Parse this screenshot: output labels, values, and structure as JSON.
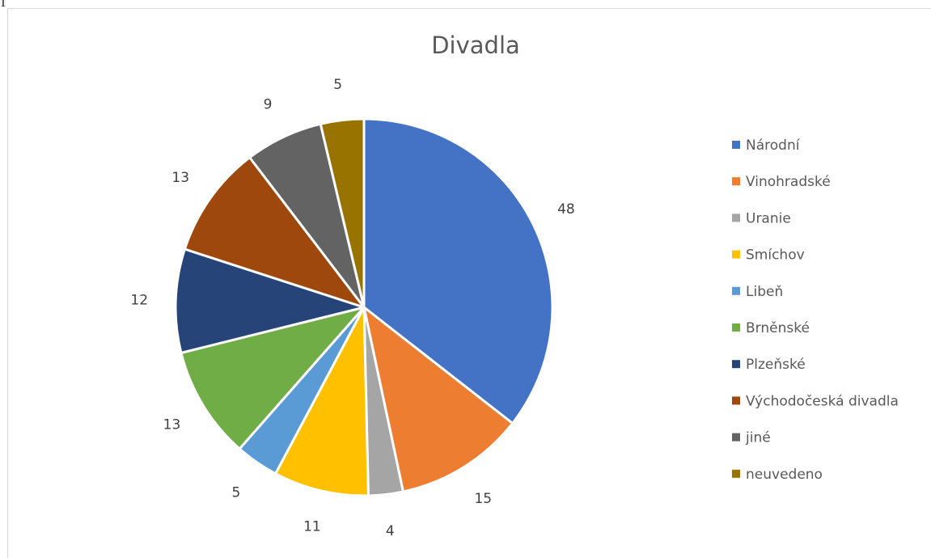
{
  "stray_text": "1",
  "chart_data": {
    "type": "pie",
    "title": "Divadla",
    "legend_position": "right",
    "slice_border_color": "#ffffff",
    "series": [
      {
        "values": [
          48,
          15,
          4,
          11,
          5,
          13,
          12,
          13,
          9,
          5
        ]
      }
    ],
    "categories": [
      "Národní",
      "Vinohradské",
      "Uranie",
      "Smíchov",
      "Libeň",
      "Brněnské",
      "Plzeňské",
      "Východočeská divadla",
      "jiné",
      "neuvedeno"
    ],
    "colors": [
      "#4472c4",
      "#ed7d31",
      "#a5a5a5",
      "#ffc000",
      "#5b9bd5",
      "#70ad47",
      "#264478",
      "#9e480e",
      "#636363",
      "#997300"
    ],
    "data_labels": [
      "48",
      "15",
      "4",
      "11",
      "5",
      "13",
      "12",
      "13",
      "9",
      "5"
    ]
  }
}
